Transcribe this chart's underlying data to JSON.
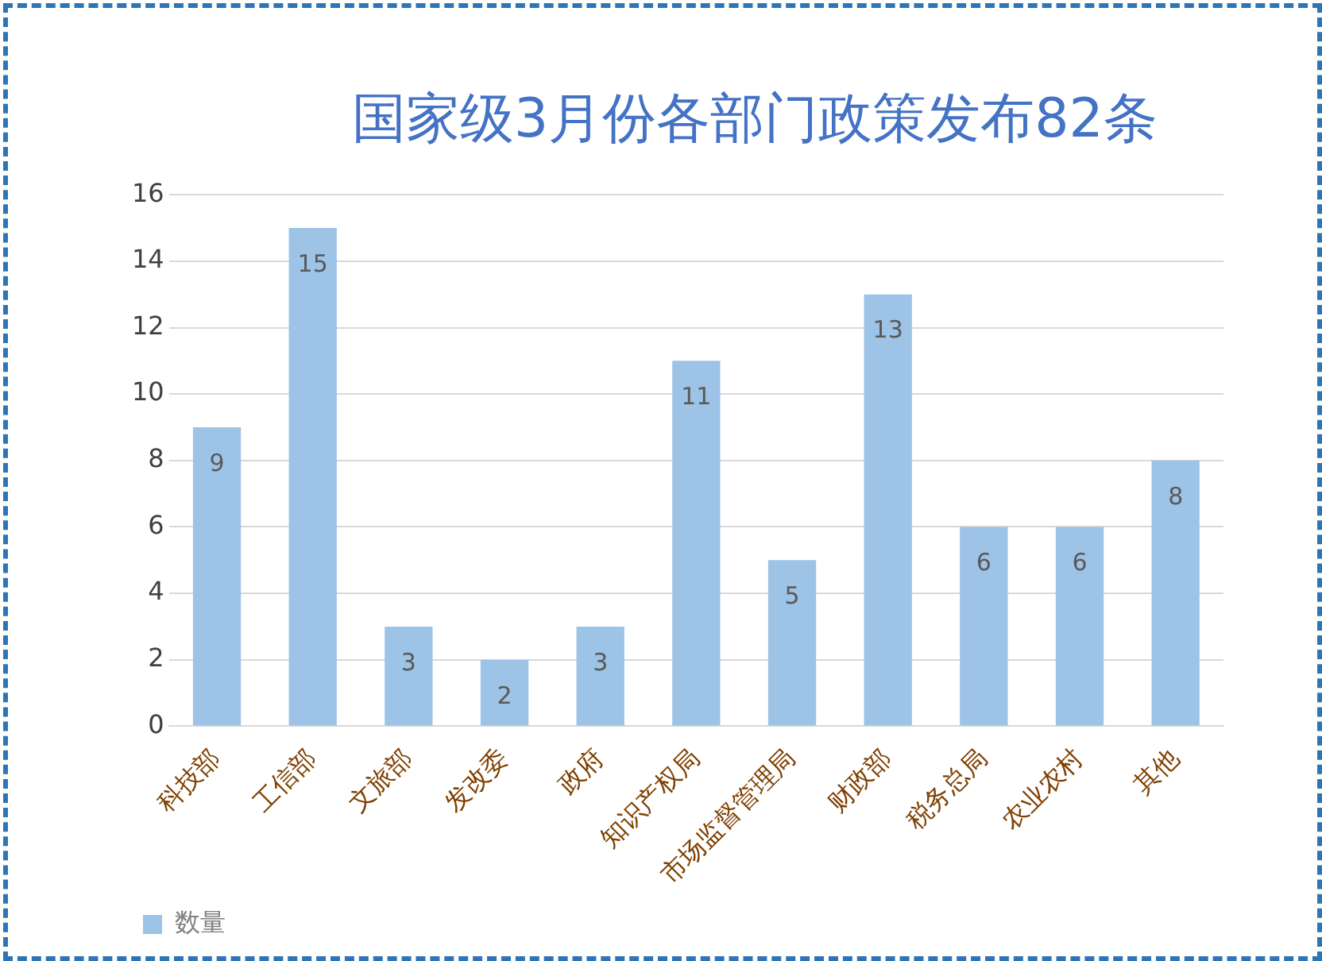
{
  "chart_data": {
    "type": "bar",
    "title": "国家级3月份各部门政策发布82条",
    "categories": [
      "科技部",
      "工信部",
      "文旅部",
      "发改委",
      "政府",
      "知识产权局",
      "市场监督管理局",
      "财政部",
      "税务总局",
      "农业农村",
      "其他"
    ],
    "series": [
      {
        "name": "数量",
        "color": "#9dc3e6",
        "values": [
          9,
          15,
          3,
          2,
          3,
          11,
          5,
          13,
          6,
          6,
          8
        ]
      }
    ],
    "ylim": [
      0,
      16
    ],
    "yticks": [
      0,
      2,
      4,
      6,
      8,
      10,
      12,
      14,
      16
    ],
    "grid": "y",
    "legend": "bottom left",
    "data_labels": true
  }
}
